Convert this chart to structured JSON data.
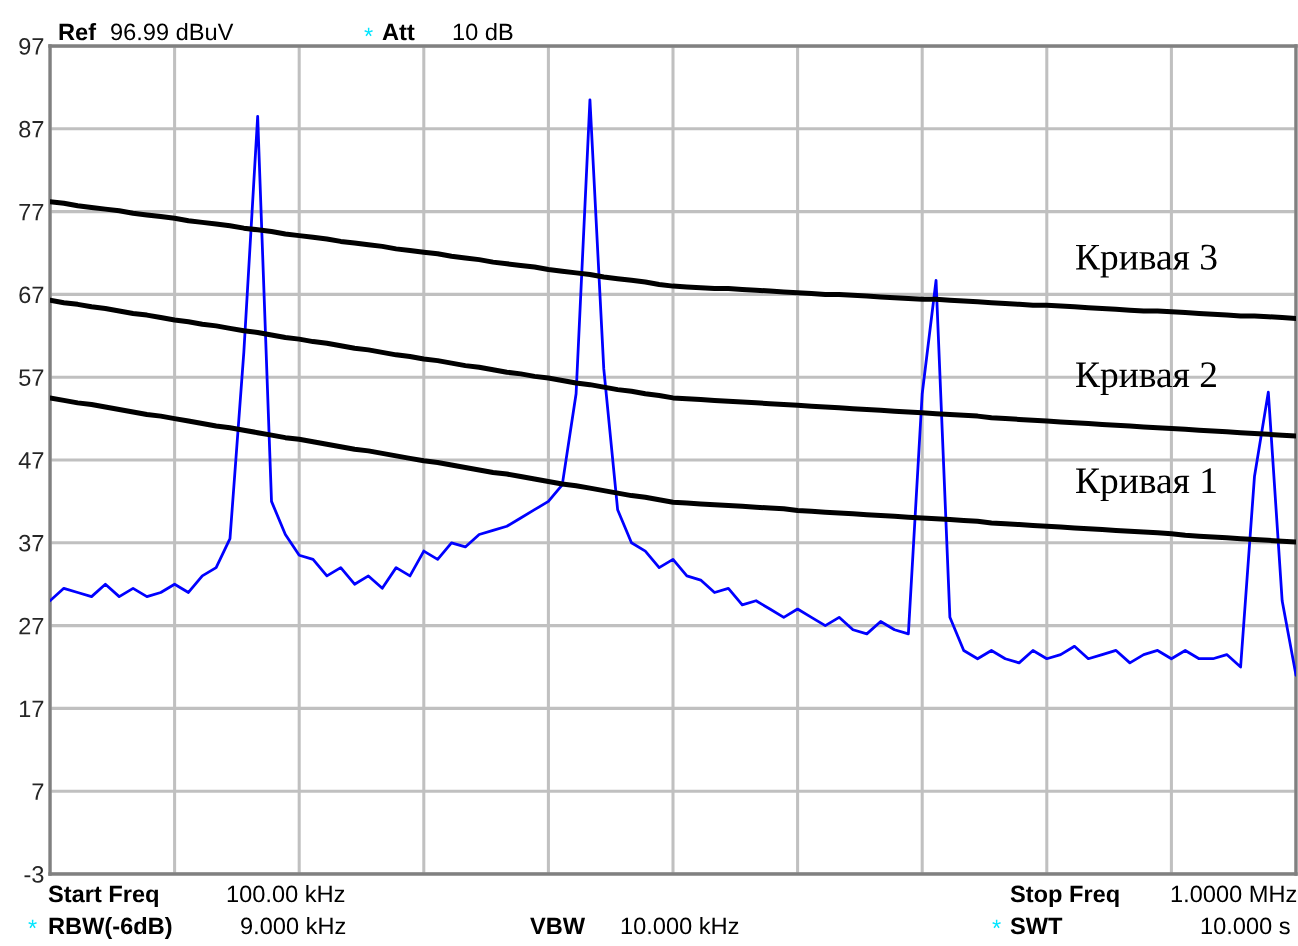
{
  "chart_data": {
    "type": "line",
    "ylim": [
      -3,
      97
    ],
    "yticks": [
      -3,
      7,
      17,
      27,
      37,
      47,
      57,
      67,
      77,
      87,
      97
    ],
    "categories": [
      null,
      null,
      null,
      null,
      null,
      null,
      null,
      null,
      null,
      null,
      null,
      null,
      null,
      null,
      null,
      null,
      null,
      null,
      null,
      null,
      null,
      null,
      null,
      null,
      null,
      null,
      null,
      null,
      null,
      null,
      null,
      null,
      null,
      null,
      null,
      null,
      null,
      null,
      null,
      null,
      null,
      null,
      null,
      null,
      null,
      null,
      null,
      null,
      null,
      null,
      null,
      null,
      null,
      null,
      null,
      null,
      null,
      null,
      null,
      null,
      null,
      null,
      null,
      null,
      null,
      null,
      null,
      null,
      null,
      null,
      null,
      null,
      null,
      null,
      null,
      null,
      null,
      null,
      null,
      null,
      null,
      null,
      null,
      null,
      null,
      null,
      null,
      null,
      null,
      null,
      null
    ],
    "grid": true,
    "series": [
      {
        "color": "#0000ff",
        "values": [
          30,
          31.5,
          31,
          30.5,
          32,
          30.5,
          31.5,
          30.5,
          31,
          32,
          31,
          33,
          34,
          37.5,
          60,
          88.5,
          42,
          38,
          35.5,
          35,
          33,
          34,
          32,
          33,
          31.5,
          34,
          33,
          36,
          35,
          37,
          36.5,
          38,
          38.5,
          39,
          40,
          41,
          42,
          44,
          55,
          90.5,
          58,
          41,
          37,
          36,
          34,
          35,
          33,
          32.5,
          31,
          31.5,
          29.5,
          30,
          29,
          28,
          29,
          28,
          27,
          28,
          26.5,
          26,
          27.5,
          26.5,
          26,
          55,
          68.7,
          28,
          24,
          23,
          24,
          23,
          22.5,
          24,
          23,
          23.5,
          24.5,
          23,
          23.5,
          24,
          22.5,
          23.5,
          24,
          23,
          24,
          23,
          23,
          23.5,
          22,
          45,
          55.2,
          30,
          21
        ]
      },
      {
        "name": "Кривая 1",
        "color": "#000000",
        "values": [
          54.5,
          54.2,
          53.9,
          53.7,
          53.4,
          53.1,
          52.8,
          52.5,
          52.3,
          52.0,
          51.7,
          51.4,
          51.1,
          50.9,
          50.6,
          50.3,
          50.0,
          49.7,
          49.5,
          49.2,
          48.9,
          48.6,
          48.3,
          48.1,
          47.8,
          47.5,
          47.2,
          46.9,
          46.7,
          46.4,
          46.1,
          45.8,
          45.5,
          45.3,
          45.0,
          44.7,
          44.4,
          44.1,
          43.9,
          43.6,
          43.3,
          43.0,
          42.7,
          42.5,
          42.2,
          41.9,
          41.8,
          41.7,
          41.6,
          41.5,
          41.4,
          41.3,
          41.2,
          41.1,
          40.9,
          40.8,
          40.7,
          40.6,
          40.5,
          40.4,
          40.3,
          40.2,
          40.1,
          40.0,
          39.9,
          39.8,
          39.7,
          39.6,
          39.4,
          39.3,
          39.2,
          39.1,
          39.0,
          38.9,
          38.8,
          38.7,
          38.6,
          38.5,
          38.4,
          38.3,
          38.2,
          38.1,
          37.9,
          37.8,
          37.7,
          37.6,
          37.5,
          37.4,
          37.3,
          37.2,
          37.1
        ]
      },
      {
        "name": "Кривая 2",
        "color": "#000000",
        "values": [
          66.3,
          66.0,
          65.8,
          65.5,
          65.3,
          65.0,
          64.7,
          64.5,
          64.2,
          63.9,
          63.7,
          63.4,
          63.2,
          62.9,
          62.6,
          62.4,
          62.1,
          61.8,
          61.6,
          61.3,
          61.1,
          60.8,
          60.5,
          60.3,
          60.0,
          59.7,
          59.5,
          59.2,
          59.0,
          58.7,
          58.4,
          58.2,
          57.9,
          57.6,
          57.4,
          57.1,
          56.9,
          56.6,
          56.3,
          56.1,
          55.8,
          55.5,
          55.3,
          55.0,
          54.8,
          54.5,
          54.4,
          54.3,
          54.2,
          54.1,
          54.0,
          53.9,
          53.8,
          53.7,
          53.6,
          53.5,
          53.4,
          53.3,
          53.2,
          53.1,
          53.0,
          52.9,
          52.8,
          52.7,
          52.6,
          52.5,
          52.4,
          52.3,
          52.1,
          52.0,
          51.9,
          51.8,
          51.7,
          51.6,
          51.5,
          51.4,
          51.3,
          51.2,
          51.1,
          51.0,
          50.9,
          50.8,
          50.7,
          50.6,
          50.5,
          50.4,
          50.3,
          50.2,
          50.1,
          50.0,
          49.9
        ]
      },
      {
        "name": "Кривая 3",
        "color": "#000000",
        "values": [
          78.2,
          78.0,
          77.7,
          77.5,
          77.3,
          77.1,
          76.8,
          76.6,
          76.4,
          76.2,
          75.9,
          75.7,
          75.5,
          75.3,
          75.0,
          74.8,
          74.6,
          74.3,
          74.1,
          73.9,
          73.7,
          73.4,
          73.2,
          73.0,
          72.8,
          72.5,
          72.3,
          72.1,
          71.9,
          71.6,
          71.4,
          71.2,
          70.9,
          70.7,
          70.5,
          70.3,
          70.0,
          69.8,
          69.6,
          69.4,
          69.1,
          68.9,
          68.7,
          68.5,
          68.2,
          68.0,
          67.9,
          67.8,
          67.7,
          67.7,
          67.6,
          67.5,
          67.4,
          67.3,
          67.2,
          67.1,
          67.0,
          67.0,
          66.9,
          66.8,
          66.7,
          66.6,
          66.5,
          66.4,
          66.4,
          66.3,
          66.2,
          66.1,
          66.0,
          65.9,
          65.8,
          65.7,
          65.7,
          65.6,
          65.5,
          65.4,
          65.3,
          65.2,
          65.1,
          65.0,
          65.0,
          64.9,
          64.8,
          64.7,
          64.6,
          64.5,
          64.4,
          64.4,
          64.3,
          64.2,
          64.1
        ]
      }
    ],
    "annotations": [
      "Ref",
      "96.99 dBuV",
      "*",
      "Att",
      "10 dB",
      "Start Freq",
      "100.00 kHz",
      "Stop Freq",
      "1.0000 MHz",
      "*",
      "RBW(-6dB)",
      "9.000 kHz",
      "VBW",
      "10.000 kHz",
      "*",
      "SWT",
      "10.000 s"
    ]
  }
}
